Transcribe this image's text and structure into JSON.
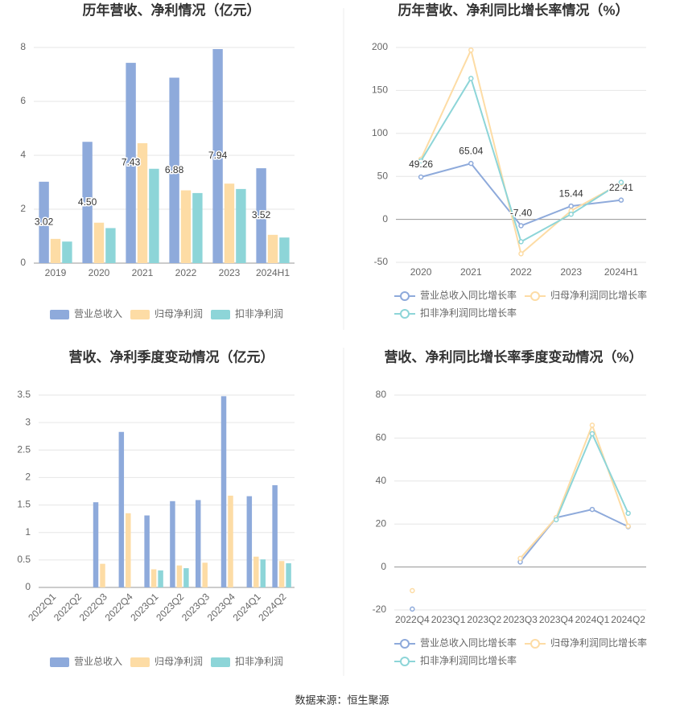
{
  "chart_data": [
    {
      "type": "bar",
      "title": "历年营收、净利情况（亿元）",
      "categories": [
        "2019",
        "2020",
        "2021",
        "2022",
        "2023",
        "2024H1"
      ],
      "series": [
        {
          "name": "营业总收入",
          "color": "#8eaadb",
          "values": [
            3.02,
            4.5,
            7.43,
            6.88,
            7.94,
            3.52
          ],
          "value_labels": [
            "3.02",
            "4.50",
            "7.43",
            "6.88",
            "7.94",
            "3.52"
          ]
        },
        {
          "name": "归母净利润",
          "color": "#fddca5",
          "values": [
            0.9,
            1.5,
            4.45,
            2.7,
            2.95,
            1.05
          ]
        },
        {
          "name": "扣非净利润",
          "color": "#8dd5d8",
          "values": [
            0.8,
            1.3,
            3.5,
            2.6,
            2.75,
            0.95
          ]
        }
      ],
      "ylim": [
        0,
        8
      ],
      "yticks": [
        0,
        2,
        4,
        6,
        8
      ],
      "grid": true
    },
    {
      "type": "line",
      "title": "历年营收、净利同比增长率情况（%）",
      "categories": [
        "2020",
        "2021",
        "2022",
        "2023",
        "2024H1"
      ],
      "series": [
        {
          "name": "营业总收入同比增长率",
          "color": "#8eaadb",
          "values": [
            49.26,
            65.04,
            -7.4,
            15.44,
            22.41
          ],
          "value_labels": [
            "49.26",
            "65.04",
            "-7.40",
            "15.44",
            "22.41"
          ]
        },
        {
          "name": "归母净利润同比增长率",
          "color": "#fddca5",
          "values": [
            70,
            197,
            -40,
            10,
            42
          ]
        },
        {
          "name": "扣非净利润同比增长率",
          "color": "#8dd5d8",
          "values": [
            68,
            164,
            -26,
            6,
            43
          ]
        }
      ],
      "ylim": [
        -50,
        200
      ],
      "yticks": [
        -50,
        0,
        50,
        100,
        150,
        200
      ],
      "grid": true
    },
    {
      "type": "bar",
      "title": "营收、净利季度变动情况（亿元）",
      "categories": [
        "2022Q1",
        "2022Q2",
        "2022Q3",
        "2022Q4",
        "2023Q1",
        "2023Q2",
        "2023Q3",
        "2023Q4",
        "2024Q1",
        "2024Q2"
      ],
      "series": [
        {
          "name": "营业总收入",
          "color": "#8eaadb",
          "values": [
            null,
            null,
            1.55,
            2.83,
            1.31,
            1.57,
            1.59,
            3.48,
            1.66,
            1.86
          ]
        },
        {
          "name": "归母净利润",
          "color": "#fddca5",
          "values": [
            null,
            null,
            0.43,
            1.35,
            0.33,
            0.4,
            0.45,
            1.67,
            0.56,
            0.48
          ]
        },
        {
          "name": "扣非净利润",
          "color": "#8dd5d8",
          "values": [
            null,
            null,
            null,
            null,
            0.31,
            0.35,
            null,
            null,
            0.51,
            0.44
          ]
        }
      ],
      "ylim": [
        0,
        3.5
      ],
      "yticks": [
        0,
        0.5,
        1,
        1.5,
        2,
        2.5,
        3,
        3.5
      ],
      "grid": true
    },
    {
      "type": "line",
      "title": "营收、净利同比增长率季度变动情况（%）",
      "categories": [
        "2022Q4",
        "2023Q1",
        "2023Q2",
        "2023Q3",
        "2023Q4",
        "2024Q1",
        "2024Q2"
      ],
      "series": [
        {
          "name": "营业总收入同比增长率",
          "color": "#8eaadb",
          "values": [
            -19.58,
            null,
            null,
            2.34,
            22.95,
            26.79,
            18.76
          ]
        },
        {
          "name": "归母净利润同比增长率",
          "color": "#fddca5",
          "values": [
            -11,
            null,
            null,
            4,
            23,
            66,
            19
          ]
        },
        {
          "name": "扣非净利润同比增长率",
          "color": "#8dd5d8",
          "values": [
            null,
            null,
            null,
            null,
            22,
            62,
            25
          ]
        }
      ],
      "ylim": [
        -20,
        80
      ],
      "yticks": [
        -20,
        0,
        20,
        40,
        60,
        80
      ],
      "grid": true
    }
  ],
  "source": "数据来源：恒生聚源"
}
